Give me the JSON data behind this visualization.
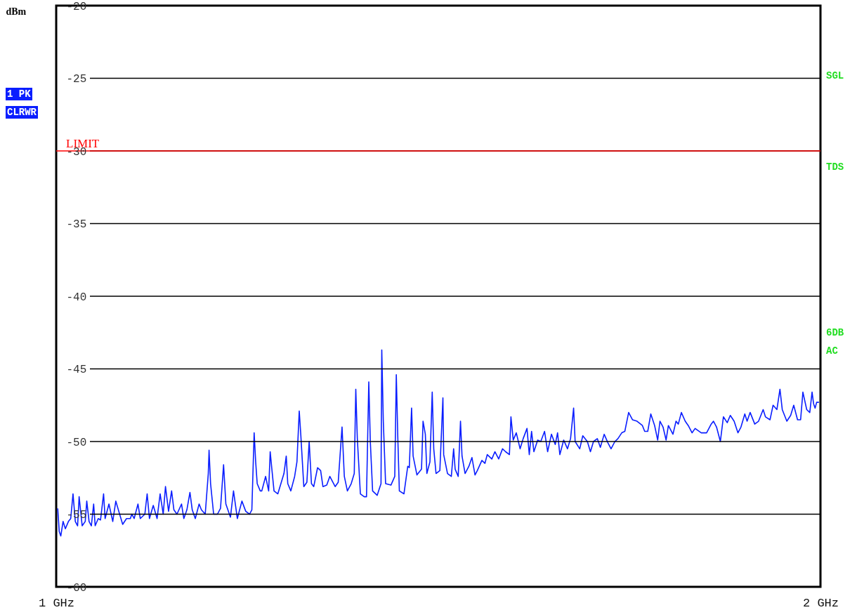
{
  "chart_data": {
    "type": "line",
    "ylabel": "dBm",
    "xlim": [
      1,
      2
    ],
    "xticks": [
      {
        "value": 1,
        "label": "1 GHz"
      },
      {
        "value": 2,
        "label": "2 GHz"
      }
    ],
    "ylim": [
      -60,
      -20
    ],
    "yticks": [
      -20,
      -25,
      -30,
      -35,
      -40,
      -45,
      -50,
      -55,
      -60
    ],
    "grid": "y",
    "ref_lines": [
      {
        "axis": "y",
        "value": -30,
        "label": "LIMIT",
        "color": "#ff0000"
      }
    ],
    "annotations": [
      "1 PK",
      "CLRWR",
      "SGL",
      "TDS",
      "6DB",
      "AC"
    ],
    "x": [
      1.002,
      1.004,
      1.006,
      1.009,
      1.012,
      1.016,
      1.019,
      1.022,
      1.025,
      1.028,
      1.03,
      1.034,
      1.038,
      1.04,
      1.043,
      1.046,
      1.049,
      1.051,
      1.055,
      1.058,
      1.062,
      1.064,
      1.069,
      1.074,
      1.078,
      1.083,
      1.087,
      1.092,
      1.097,
      1.099,
      1.102,
      1.107,
      1.11,
      1.116,
      1.119,
      1.122,
      1.127,
      1.132,
      1.136,
      1.14,
      1.143,
      1.147,
      1.151,
      1.154,
      1.158,
      1.164,
      1.167,
      1.171,
      1.175,
      1.178,
      1.182,
      1.187,
      1.19,
      1.195,
      1.199,
      1.2,
      1.202,
      1.206,
      1.211,
      1.215,
      1.219,
      1.222,
      1.228,
      1.232,
      1.237,
      1.243,
      1.248,
      1.253,
      1.256,
      1.259,
      1.261,
      1.263,
      1.267,
      1.269,
      1.274,
      1.278,
      1.28,
      1.282,
      1.285,
      1.29,
      1.294,
      1.298,
      1.301,
      1.303,
      1.307,
      1.312,
      1.315,
      1.318,
      1.32,
      1.324,
      1.328,
      1.331,
      1.334,
      1.337,
      1.342,
      1.346,
      1.349,
      1.354,
      1.358,
      1.365,
      1.369,
      1.374,
      1.377,
      1.381,
      1.386,
      1.39,
      1.392,
      1.394,
      1.398,
      1.403,
      1.406,
      1.409,
      1.411,
      1.414,
      1.42,
      1.425,
      1.426,
      1.428,
      1.431,
      1.438,
      1.443,
      1.445,
      1.447,
      1.449,
      1.455,
      1.46,
      1.462,
      1.465,
      1.467,
      1.472,
      1.478,
      1.48,
      1.483,
      1.485,
      1.489,
      1.492,
      1.494,
      1.497,
      1.502,
      1.506,
      1.507,
      1.512,
      1.517,
      1.52,
      1.522,
      1.526,
      1.529,
      1.531,
      1.535,
      1.54,
      1.544,
      1.548,
      1.551,
      1.557,
      1.561,
      1.564,
      1.57,
      1.574,
      1.579,
      1.584,
      1.588,
      1.593,
      1.595,
      1.598,
      1.602,
      1.607,
      1.611,
      1.616,
      1.619,
      1.622,
      1.625,
      1.63,
      1.634,
      1.639,
      1.643,
      1.648,
      1.653,
      1.656,
      1.659,
      1.664,
      1.669,
      1.673,
      1.677,
      1.679,
      1.685,
      1.689,
      1.695,
      1.699,
      1.703,
      1.708,
      1.712,
      1.717,
      1.722,
      1.726,
      1.731,
      1.735,
      1.74,
      1.744,
      1.749,
      1.754,
      1.76,
      1.767,
      1.77,
      1.774,
      1.778,
      1.783,
      1.787,
      1.79,
      1.794,
      1.798,
      1.801,
      1.807,
      1.811,
      1.814,
      1.818,
      1.823,
      1.827,
      1.832,
      1.836,
      1.844,
      1.851,
      1.857,
      1.86,
      1.864,
      1.869,
      1.873,
      1.878,
      1.882,
      1.887,
      1.892,
      1.896,
      1.901,
      1.904,
      1.908,
      1.914,
      1.919,
      1.925,
      1.928,
      1.934,
      1.938,
      1.943,
      1.947,
      1.95,
      1.956,
      1.961,
      1.965,
      1.97,
      1.974,
      1.977,
      1.982,
      1.986,
      1.989,
      1.991,
      1.993,
      1.995,
      1.998
    ],
    "series": [
      {
        "color": "#0a1eff",
        "values": [
          -54.6,
          -56.2,
          -56.5,
          -55.5,
          -56.0,
          -55.5,
          -55.3,
          -53.6,
          -55.5,
          -55.8,
          -53.8,
          -55.8,
          -55.5,
          -54.1,
          -55.5,
          -55.8,
          -54.3,
          -55.8,
          -55.3,
          -55.4,
          -53.6,
          -55.3,
          -54.3,
          -55.5,
          -54.1,
          -55.0,
          -55.7,
          -55.3,
          -55.3,
          -55.0,
          -55.3,
          -54.3,
          -55.3,
          -55.0,
          -53.6,
          -55.3,
          -54.4,
          -55.3,
          -53.6,
          -55.0,
          -53.1,
          -54.8,
          -53.4,
          -54.7,
          -55.0,
          -54.3,
          -55.3,
          -54.7,
          -53.5,
          -54.7,
          -55.3,
          -54.3,
          -54.7,
          -55.0,
          -52.2,
          -50.6,
          -52.9,
          -55.0,
          -55.0,
          -54.6,
          -51.6,
          -54.3,
          -55.2,
          -53.4,
          -55.3,
          -54.1,
          -54.8,
          -55.0,
          -54.7,
          -49.4,
          -51.4,
          -52.9,
          -53.4,
          -53.4,
          -52.4,
          -53.4,
          -50.7,
          -51.8,
          -53.4,
          -53.6,
          -52.9,
          -52.2,
          -51.0,
          -52.9,
          -53.4,
          -52.4,
          -51.4,
          -47.9,
          -49.5,
          -53.1,
          -52.8,
          -50.0,
          -52.9,
          -53.1,
          -51.8,
          -52.0,
          -53.1,
          -53.0,
          -52.4,
          -53.1,
          -52.8,
          -49.0,
          -52.4,
          -53.4,
          -52.9,
          -52.2,
          -46.4,
          -49.8,
          -53.6,
          -53.8,
          -53.8,
          -45.9,
          -50.0,
          -53.4,
          -53.7,
          -52.9,
          -43.7,
          -48.6,
          -52.9,
          -53.0,
          -52.4,
          -45.4,
          -49.8,
          -53.4,
          -53.6,
          -51.7,
          -51.8,
          -47.7,
          -51.0,
          -52.3,
          -51.9,
          -48.6,
          -49.5,
          -52.2,
          -51.4,
          -46.6,
          -50.5,
          -52.2,
          -52.0,
          -47.0,
          -50.9,
          -52.2,
          -52.4,
          -50.5,
          -51.9,
          -52.4,
          -48.6,
          -51.0,
          -52.2,
          -51.7,
          -51.1,
          -52.3,
          -52.0,
          -51.3,
          -51.5,
          -50.9,
          -51.2,
          -50.7,
          -51.2,
          -50.5,
          -50.7,
          -50.9,
          -48.3,
          -49.9,
          -49.4,
          -50.5,
          -49.8,
          -49.1,
          -50.9,
          -49.3,
          -50.7,
          -49.9,
          -50.0,
          -49.3,
          -50.7,
          -49.5,
          -50.2,
          -49.4,
          -50.9,
          -49.9,
          -50.5,
          -49.8,
          -47.7,
          -50.0,
          -50.5,
          -49.6,
          -50.0,
          -50.7,
          -50.0,
          -49.8,
          -50.4,
          -49.5,
          -50.1,
          -50.5,
          -50.0,
          -49.8,
          -49.4,
          -49.3,
          -48.0,
          -48.5,
          -48.6,
          -48.9,
          -49.3,
          -49.3,
          -48.1,
          -48.9,
          -49.9,
          -48.6,
          -49.0,
          -49.9,
          -48.9,
          -49.5,
          -48.6,
          -48.8,
          -48.0,
          -48.6,
          -48.9,
          -49.4,
          -49.1,
          -49.4,
          -49.4,
          -48.8,
          -48.6,
          -49.0,
          -50.0,
          -48.3,
          -48.7,
          -48.2,
          -48.6,
          -49.4,
          -49.0,
          -48.1,
          -48.6,
          -48.0,
          -48.8,
          -48.6,
          -47.8,
          -48.3,
          -48.5,
          -47.5,
          -47.8,
          -46.4,
          -47.8,
          -48.6,
          -48.2,
          -47.5,
          -48.5,
          -48.5,
          -46.6,
          -47.8,
          -48.0,
          -46.6,
          -47.4,
          -47.7,
          -47.3,
          -47.3
        ]
      }
    ]
  }
}
